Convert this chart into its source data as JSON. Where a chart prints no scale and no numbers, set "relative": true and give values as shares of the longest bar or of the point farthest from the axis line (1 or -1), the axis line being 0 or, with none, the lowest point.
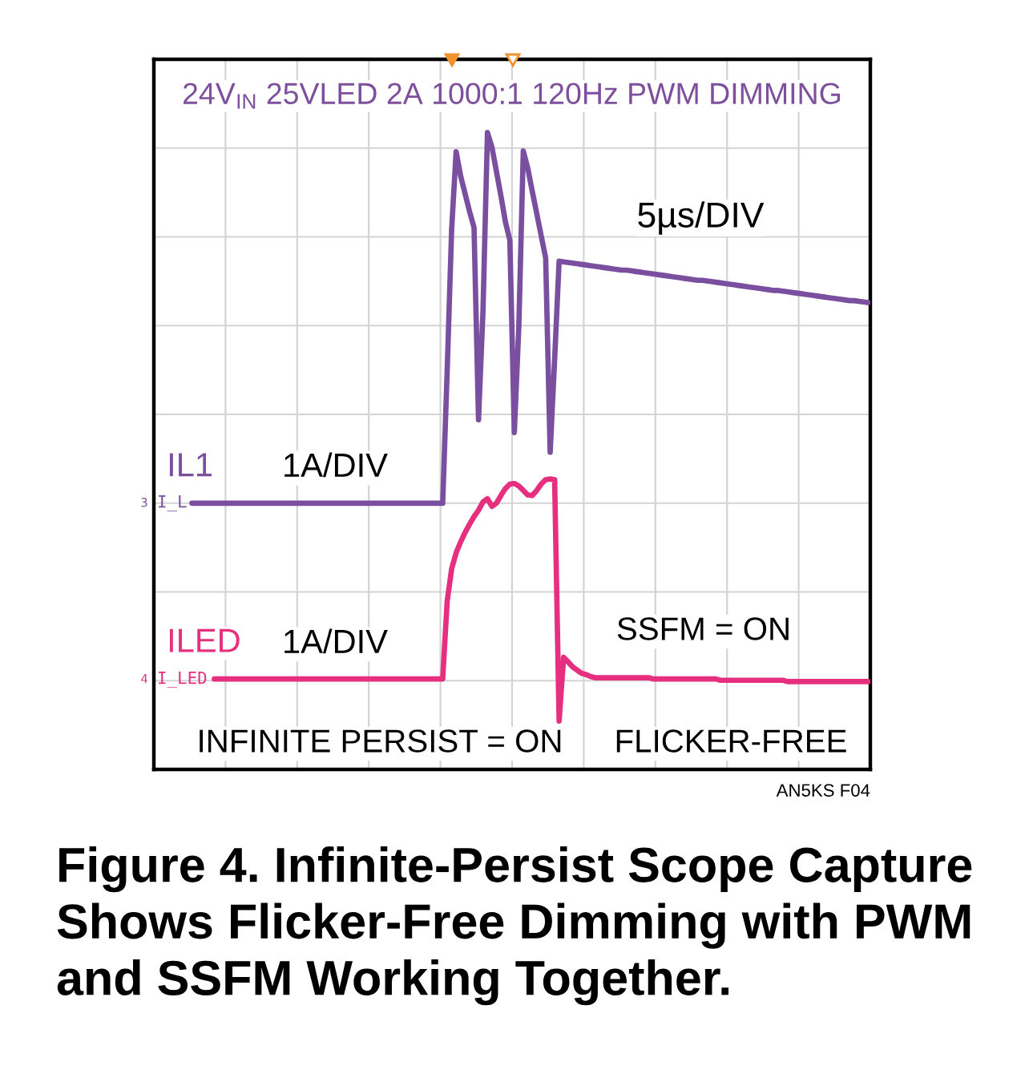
{
  "chart_data": {
    "type": "line",
    "title": "24V$_{IN}$ 25VLED 2A 1000:1 120Hz PWM DIMMING",
    "relative": true,
    "grid": true,
    "tick_labels": false,
    "line_style": "solid",
    "categories": [
      null,
      null,
      null,
      null,
      null,
      null,
      null,
      null,
      null,
      null,
      null,
      null,
      null,
      null,
      null,
      null,
      null,
      null,
      null,
      null,
      null,
      null,
      null,
      null,
      null,
      null,
      null,
      null,
      null,
      null,
      null,
      null,
      null,
      null,
      null,
      null,
      null,
      null,
      null,
      null,
      null,
      null,
      null,
      null,
      null,
      null,
      null,
      null,
      null,
      null,
      null,
      null,
      null,
      null,
      null,
      null,
      null,
      null,
      null,
      null,
      null,
      null,
      null,
      null,
      null,
      null,
      null,
      null,
      null,
      null,
      null,
      null,
      null,
      null,
      null,
      null,
      null,
      null,
      null,
      null,
      null,
      null,
      null,
      null,
      null,
      null,
      null,
      null,
      null,
      null,
      null,
      null,
      null,
      null,
      null,
      null,
      null,
      null,
      null,
      null,
      null,
      null,
      null,
      null,
      null,
      null,
      null,
      null,
      null,
      null,
      null,
      null,
      null,
      null,
      null,
      null,
      null,
      null,
      null,
      null,
      null,
      null,
      null,
      null,
      null,
      null,
      null,
      null,
      null,
      null,
      null,
      null,
      null,
      null,
      null,
      null,
      null,
      null,
      null,
      null,
      null,
      null,
      null,
      null,
      null,
      null,
      null,
      null,
      null,
      null,
      null,
      null,
      null,
      null,
      null,
      null,
      null,
      null,
      null,
      null
    ],
    "series": [
      {
        "name": "IL1",
        "color": "#7b4fa0",
        "values": [
          null,
          null,
          null,
          null,
          null,
          null,
          null,
          null,
          0.418,
          0.418,
          0.418,
          0.418,
          0.418,
          0.418,
          0.418,
          0.418,
          0.418,
          0.418,
          0.418,
          0.418,
          0.418,
          0.418,
          0.418,
          0.418,
          0.418,
          0.418,
          0.418,
          0.418,
          0.418,
          0.418,
          0.418,
          0.418,
          0.418,
          0.418,
          0.418,
          0.418,
          0.418,
          0.418,
          0.418,
          0.418,
          0.418,
          0.418,
          0.418,
          0.418,
          0.418,
          0.418,
          0.418,
          0.418,
          0.418,
          0.418,
          0.418,
          0.418,
          0.418,
          0.418,
          0.418,
          0.418,
          0.418,
          0.418,
          0.418,
          0.418,
          0.418,
          0.418,
          0.418,
          0.418,
          0.418,
          0.625,
          0.848,
          0.97,
          0.932,
          0.904,
          0.876,
          0.851,
          0.549,
          0.72,
          1,
          0.977,
          0.939,
          0.901,
          0.86,
          0.831,
          0.529,
          0.695,
          0.971,
          0.944,
          0.908,
          0.873,
          0.838,
          0.803,
          0.498,
          0.644,
          0.798,
          0.797,
          0.796,
          0.795,
          0.794,
          0.793,
          0.792,
          0.791,
          0.79,
          0.789,
          0.788,
          0.787,
          0.786,
          0.785,
          0.784,
          0.784,
          0.783,
          0.782,
          0.781,
          0.78,
          0.779,
          0.778,
          0.777,
          0.776,
          0.775,
          0.774,
          0.773,
          0.772,
          0.771,
          0.77,
          0.769,
          0.768,
          0.768,
          0.767,
          0.766,
          0.765,
          0.764,
          0.763,
          0.762,
          0.761,
          0.76,
          0.759,
          0.758,
          0.757,
          0.756,
          0.755,
          0.754,
          0.753,
          0.752,
          0.752,
          0.751,
          0.75,
          0.749,
          0.748,
          0.747,
          0.746,
          0.745,
          0.744,
          0.743,
          0.742,
          0.741,
          0.74,
          0.739,
          0.738,
          0.737,
          0.736,
          0.736,
          0.735,
          0.734,
          0.733
        ]
      },
      {
        "name": "ILED",
        "color": "#e6307f",
        "values": [
          null,
          null,
          null,
          null,
          null,
          null,
          null,
          null,
          null,
          null,
          null,
          null,
          null,
          0.142,
          0.142,
          0.142,
          0.142,
          0.142,
          0.142,
          0.142,
          0.142,
          0.142,
          0.142,
          0.142,
          0.142,
          0.142,
          0.142,
          0.142,
          0.142,
          0.142,
          0.142,
          0.142,
          0.142,
          0.142,
          0.142,
          0.142,
          0.142,
          0.142,
          0.142,
          0.142,
          0.142,
          0.142,
          0.142,
          0.142,
          0.142,
          0.142,
          0.142,
          0.142,
          0.142,
          0.142,
          0.142,
          0.142,
          0.142,
          0.142,
          0.142,
          0.142,
          0.142,
          0.142,
          0.142,
          0.142,
          0.142,
          0.142,
          0.142,
          0.142,
          0.142,
          0.264,
          0.315,
          0.34,
          0.357,
          0.372,
          0.385,
          0.397,
          0.407,
          0.42,
          0.425,
          0.413,
          0.418,
          0.43,
          0.441,
          0.448,
          0.449,
          0.445,
          0.438,
          0.431,
          0.43,
          0.438,
          0.448,
          0.455,
          0.456,
          0.455,
          0.076,
          0.176,
          0.169,
          0.161,
          0.156,
          0.151,
          0.149,
          0.146,
          0.144,
          0.144,
          0.144,
          0.144,
          0.144,
          0.144,
          0.144,
          0.144,
          0.144,
          0.144,
          0.144,
          0.144,
          0.144,
          0.142,
          0.142,
          0.142,
          0.142,
          0.142,
          0.142,
          0.142,
          0.142,
          0.142,
          0.142,
          0.142,
          0.142,
          0.142,
          0.142,
          0.142,
          0.14,
          0.14,
          0.14,
          0.14,
          0.14,
          0.14,
          0.14,
          0.14,
          0.14,
          0.14,
          0.14,
          0.14,
          0.14,
          0.14,
          0.14,
          0.138,
          0.138,
          0.138,
          0.138,
          0.138,
          0.138,
          0.138,
          0.138,
          0.138,
          0.138,
          0.138,
          0.138,
          0.138,
          0.138,
          0.138,
          0.138,
          0.138,
          0.138,
          0.138
        ]
      }
    ],
    "annotations": [
      "5µs/DIV",
      "1A/DIV",
      "1A/DIV",
      "SSFM = ON",
      "INFINITE PERSIST = ON",
      "FLICKER-FREE",
      "3",
      "I_L",
      "4",
      "I_LED",
      "AN5KS F04",
      "Figure 4. Infinite-Persist Scope Capture Shows Flicker-Free Dimming with PWM and SSFM Working Together."
    ]
  }
}
